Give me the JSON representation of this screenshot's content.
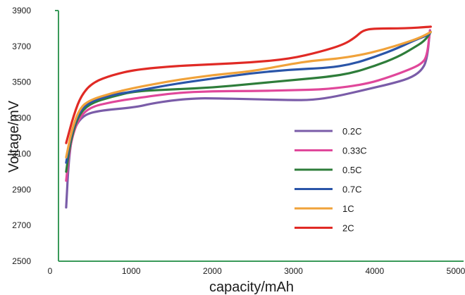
{
  "chart_data": {
    "type": "line",
    "title": "",
    "xlabel": "capacity/mAh",
    "ylabel": "Voltage/mV",
    "xlim": [
      0,
      5000
    ],
    "ylim": [
      2500,
      3900
    ],
    "x_ticks": [
      "0",
      "1000",
      "2000",
      "3000",
      "4000",
      "5000"
    ],
    "y_ticks": [
      "2500",
      "2700",
      "2900",
      "3100",
      "3300",
      "3500",
      "3700",
      "3900"
    ],
    "grid": false,
    "legend_position": "center-right",
    "axis_color": "#3a9a5a",
    "series": [
      {
        "name": "0.2C",
        "color": "#7a5ca8",
        "points": [
          [
            100,
            2800
          ],
          [
            130,
            3050
          ],
          [
            180,
            3220
          ],
          [
            300,
            3310
          ],
          [
            500,
            3340
          ],
          [
            1000,
            3360
          ],
          [
            1200,
            3380
          ],
          [
            1500,
            3400
          ],
          [
            1800,
            3410
          ],
          [
            2000,
            3410
          ],
          [
            2500,
            3405
          ],
          [
            3000,
            3400
          ],
          [
            3300,
            3400
          ],
          [
            3600,
            3420
          ],
          [
            4000,
            3460
          ],
          [
            4300,
            3490
          ],
          [
            4550,
            3520
          ],
          [
            4700,
            3560
          ],
          [
            4780,
            3620
          ],
          [
            4820,
            3790
          ]
        ]
      },
      {
        "name": "0.33C",
        "color": "#e0479a",
        "points": [
          [
            100,
            2950
          ],
          [
            150,
            3150
          ],
          [
            250,
            3290
          ],
          [
            400,
            3360
          ],
          [
            700,
            3390
          ],
          [
            1000,
            3410
          ],
          [
            1500,
            3440
          ],
          [
            2000,
            3450
          ],
          [
            2500,
            3450
          ],
          [
            3000,
            3455
          ],
          [
            3500,
            3460
          ],
          [
            4000,
            3490
          ],
          [
            4300,
            3530
          ],
          [
            4550,
            3570
          ],
          [
            4700,
            3600
          ],
          [
            4780,
            3640
          ],
          [
            4820,
            3790
          ]
        ]
      },
      {
        "name": "0.5C",
        "color": "#2e7d3a",
        "points": [
          [
            100,
            3000
          ],
          [
            150,
            3160
          ],
          [
            250,
            3310
          ],
          [
            400,
            3380
          ],
          [
            700,
            3420
          ],
          [
            1000,
            3450
          ],
          [
            1500,
            3460
          ],
          [
            2000,
            3470
          ],
          [
            2500,
            3490
          ],
          [
            3000,
            3510
          ],
          [
            3500,
            3530
          ],
          [
            3800,
            3550
          ],
          [
            4100,
            3590
          ],
          [
            4400,
            3640
          ],
          [
            4600,
            3690
          ],
          [
            4750,
            3730
          ],
          [
            4830,
            3780
          ]
        ]
      },
      {
        "name": "0.7C",
        "color": "#2a55a8",
        "points": [
          [
            100,
            3050
          ],
          [
            160,
            3200
          ],
          [
            260,
            3330
          ],
          [
            400,
            3390
          ],
          [
            700,
            3430
          ],
          [
            1000,
            3450
          ],
          [
            1500,
            3490
          ],
          [
            2000,
            3520
          ],
          [
            2500,
            3550
          ],
          [
            3000,
            3570
          ],
          [
            3500,
            3580
          ],
          [
            3800,
            3600
          ],
          [
            4100,
            3640
          ],
          [
            4400,
            3690
          ],
          [
            4650,
            3740
          ],
          [
            4780,
            3760
          ],
          [
            4830,
            3780
          ]
        ]
      },
      {
        "name": "1C",
        "color": "#f0a23a",
        "points": [
          [
            100,
            3080
          ],
          [
            170,
            3230
          ],
          [
            270,
            3350
          ],
          [
            400,
            3400
          ],
          [
            700,
            3440
          ],
          [
            1000,
            3470
          ],
          [
            1500,
            3510
          ],
          [
            2000,
            3540
          ],
          [
            2500,
            3560
          ],
          [
            3000,
            3600
          ],
          [
            3300,
            3620
          ],
          [
            3600,
            3630
          ],
          [
            3900,
            3650
          ],
          [
            4200,
            3680
          ],
          [
            4500,
            3720
          ],
          [
            4700,
            3750
          ],
          [
            4830,
            3780
          ]
        ]
      },
      {
        "name": "2C",
        "color": "#e02a25",
        "points": [
          [
            100,
            3160
          ],
          [
            200,
            3320
          ],
          [
            300,
            3430
          ],
          [
            450,
            3500
          ],
          [
            700,
            3540
          ],
          [
            1000,
            3570
          ],
          [
            1500,
            3590
          ],
          [
            2000,
            3600
          ],
          [
            2500,
            3610
          ],
          [
            3000,
            3630
          ],
          [
            3400,
            3670
          ],
          [
            3700,
            3710
          ],
          [
            3850,
            3750
          ],
          [
            3950,
            3790
          ],
          [
            4100,
            3800
          ],
          [
            4500,
            3800
          ],
          [
            4830,
            3810
          ]
        ]
      }
    ]
  }
}
